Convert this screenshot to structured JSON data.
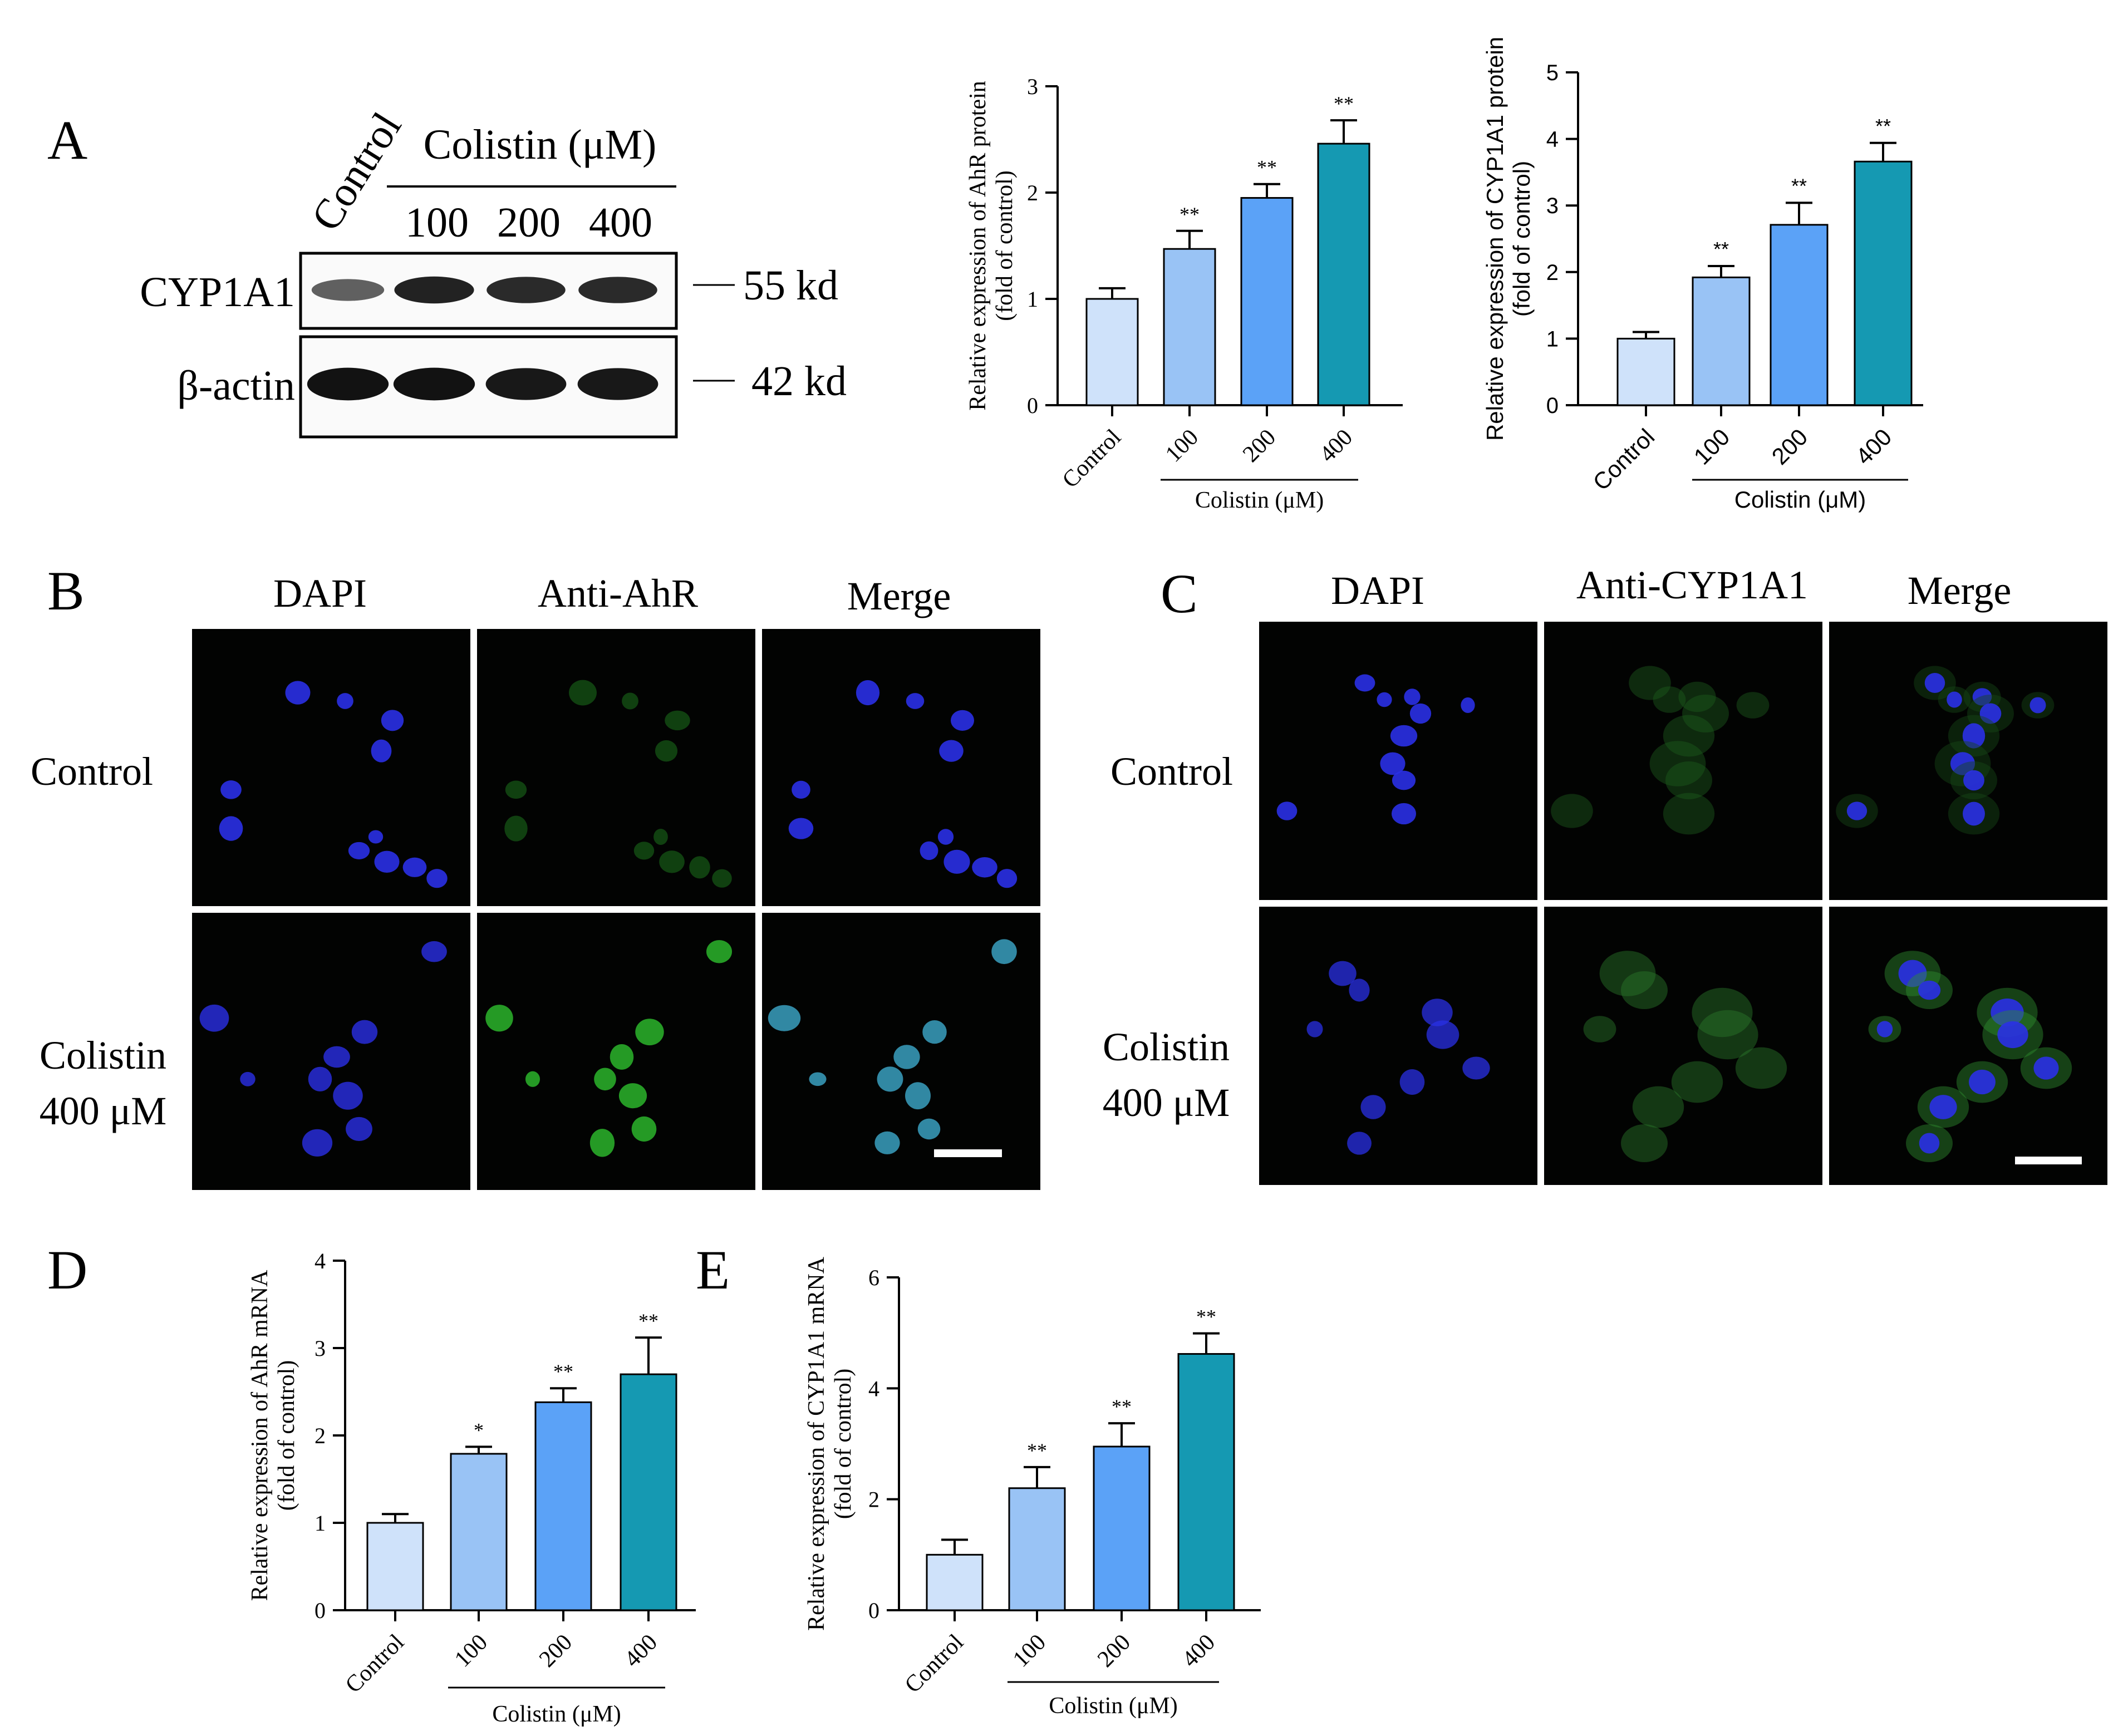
{
  "figure": {
    "colors": {
      "control": "#cfe2fa",
      "c100": "#99c3f5",
      "c200": "#5ba2f7",
      "c400": "#1599b2",
      "dapi": "#2a30e6",
      "green": "#2cb52c",
      "teal": "#3aa0c0",
      "scale_bar": "#ffffff"
    },
    "panel_letters": {
      "a": "A",
      "b": "B",
      "c": "C",
      "d": "D",
      "e": "E"
    },
    "blot": {
      "lane_control": "Control",
      "group_header": "Colistin (μM)",
      "lanes": [
        "100",
        "200",
        "400"
      ],
      "rows": [
        {
          "label": "CYP1A1",
          "mw": "55 kd",
          "intensity": [
            0.45,
            0.85,
            0.8,
            0.8
          ]
        },
        {
          "label": "β-actin",
          "mw": "42 kd",
          "intensity": [
            0.95,
            0.95,
            0.9,
            0.9
          ]
        }
      ]
    },
    "if_b": {
      "headers": [
        "DAPI",
        "Anti-AhR",
        "Merge"
      ],
      "row_labels": [
        [
          "Control"
        ],
        [
          "Colistin",
          "400 μM"
        ]
      ]
    },
    "if_c": {
      "headers": [
        "DAPI",
        "Anti-CYP1A1",
        "Merge"
      ],
      "row_labels": [
        [
          "Control"
        ],
        [
          "Colistin",
          "400 μM"
        ]
      ]
    }
  },
  "chart_data": [
    {
      "panel": "A",
      "type": "bar",
      "categories": [
        "Control",
        "100",
        "200",
        "400"
      ],
      "group_label": "Colistin (μM)",
      "values": [
        1.0,
        1.47,
        1.95,
        2.46
      ],
      "errors": [
        0.1,
        0.17,
        0.13,
        0.22
      ],
      "significance": [
        "",
        "**",
        "**",
        "**"
      ],
      "ylabel": [
        "Relative expression of AhR protein",
        "(fold of control)"
      ],
      "ylim": [
        0,
        3
      ],
      "yticks": [
        "0",
        "1",
        "2",
        "3"
      ],
      "font": "serif"
    },
    {
      "panel": "A",
      "type": "bar",
      "categories": [
        "Control",
        "100",
        "200",
        "400"
      ],
      "group_label": "Colistin (μM)",
      "values": [
        1.0,
        1.92,
        2.71,
        3.66
      ],
      "errors": [
        0.1,
        0.17,
        0.33,
        0.28
      ],
      "significance": [
        "",
        "**",
        "**",
        "**"
      ],
      "ylabel": [
        "Relative expression of CYP1A1 protein",
        "(fold of control)"
      ],
      "ylim": [
        0,
        5
      ],
      "yticks": [
        "0",
        "1",
        "2",
        "3",
        "4",
        "5"
      ],
      "font": "sans"
    },
    {
      "panel": "D",
      "type": "bar",
      "categories": [
        "Control",
        "100",
        "200",
        "400"
      ],
      "group_label": "Colistin (μM)",
      "values": [
        1.0,
        1.79,
        2.38,
        2.7
      ],
      "errors": [
        0.1,
        0.08,
        0.16,
        0.42
      ],
      "significance": [
        "",
        "*",
        "**",
        "**"
      ],
      "ylabel": [
        "Relative expression of AhR mRNA",
        "(fold of control)"
      ],
      "ylim": [
        0,
        4
      ],
      "yticks": [
        "0",
        "1",
        "2",
        "3",
        "4"
      ],
      "font": "serif"
    },
    {
      "panel": "E",
      "type": "bar",
      "categories": [
        "Control",
        "100",
        "200",
        "400"
      ],
      "group_label": "Colistin (μM)",
      "values": [
        1.0,
        2.2,
        2.95,
        4.62
      ],
      "errors": [
        0.27,
        0.38,
        0.42,
        0.37
      ],
      "significance": [
        "",
        "**",
        "**",
        "**"
      ],
      "ylabel": [
        "Relative expression of CYP1A1 mRNA",
        "(fold of control)"
      ],
      "ylim": [
        0,
        6
      ],
      "yticks": [
        "0",
        "2",
        "4",
        "6"
      ],
      "font": "serif"
    }
  ]
}
